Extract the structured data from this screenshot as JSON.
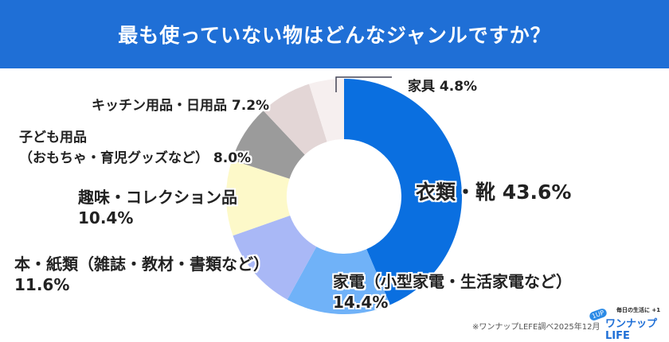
{
  "chart_data": {
    "type": "pie",
    "donut": true,
    "title": "最も使っていない物はどんなジャンルですか？",
    "slices": [
      {
        "label": "衣類・靴",
        "value": 43.6,
        "color": "#0a6fe0"
      },
      {
        "label": "家電（小型家電・生活家電など）",
        "value": 14.4,
        "color": "#70b2f8"
      },
      {
        "label": "本・紙類（雑誌・教材・書類など）",
        "value": 11.6,
        "color": "#a9b8f6"
      },
      {
        "label": "趣味・コレクション品",
        "value": 10.4,
        "color": "#fdf9c9"
      },
      {
        "label": "子ども用品（おもちゃ・育児グッズなど）",
        "value": 8.0,
        "color": "#9b9b9b"
      },
      {
        "label": "キッチン用品・日用品",
        "value": 7.2,
        "color": "#e3d6d6"
      },
      {
        "label": "家具",
        "value": 4.8,
        "color": "#f6efef"
      }
    ],
    "value_labels": [
      "43.6%",
      "14.4%",
      "11.6%",
      "10.4%",
      "8.0%",
      "7.2%",
      "4.8%"
    ],
    "start": "top",
    "direction": "clockwise"
  },
  "labels": {
    "clothes": "衣類・靴 43.6%",
    "appliance_1": "家電（小型家電・生活家電など）",
    "appliance_2": "14.4%",
    "books_1": "本・紙類（雑誌・教材・書類など）",
    "books_2": "11.6%",
    "hobby_1": "趣味・コレクション品",
    "hobby_2": "10.4%",
    "kids_1": "子ども用品",
    "kids_2": "（おもちゃ・育児グッズなど） 8.0%",
    "kitchen": "キッチン用品・日用品 7.2%",
    "furniture": "家具 4.8%"
  },
  "footer": {
    "source": "※ワンナップLEFE調べ2025年12月",
    "logo_text": "ワンナップ LIFE",
    "logo_tagline": "毎日の生活に +1",
    "logo_badge": "1UP"
  },
  "colors": {
    "title_bar": "#1f6fd6"
  }
}
